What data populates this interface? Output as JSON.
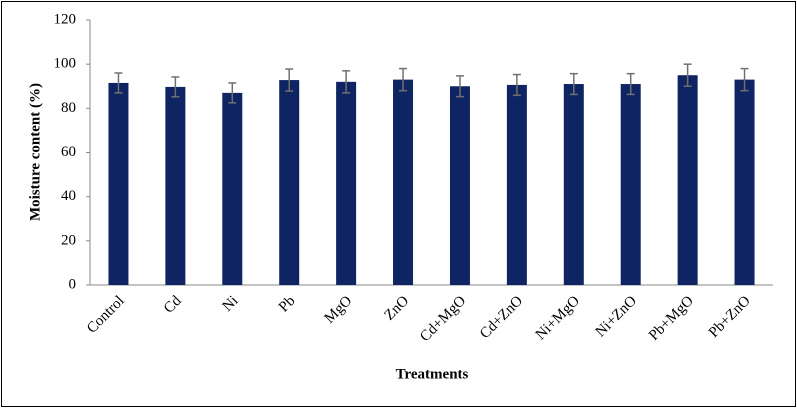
{
  "chart_data": {
    "type": "bar",
    "x_label": "Treatments",
    "y_label": "Moisture content (%)",
    "categories": [
      "Control",
      "Cd",
      "Ni",
      "Pb",
      "MgO",
      "ZnO",
      "Cd+MgO",
      "Cd+ZnO",
      "Ni+MgO",
      "Ni+ZnO",
      "Pb+MgO",
      "Pb+ZnO"
    ],
    "values": [
      91.5,
      89.7,
      87,
      92.8,
      92,
      93,
      90,
      90.6,
      91,
      91,
      95,
      93
    ],
    "errors": [
      4.5,
      4.5,
      4.5,
      5,
      5,
      5,
      4.7,
      4.7,
      4.7,
      4.7,
      5,
      5
    ],
    "color": "#0f2463",
    "error_color": "#707070",
    "ylim": [
      0,
      120
    ],
    "yticks": [
      0,
      20,
      40,
      60,
      80,
      100,
      120
    ],
    "grid": false
  }
}
